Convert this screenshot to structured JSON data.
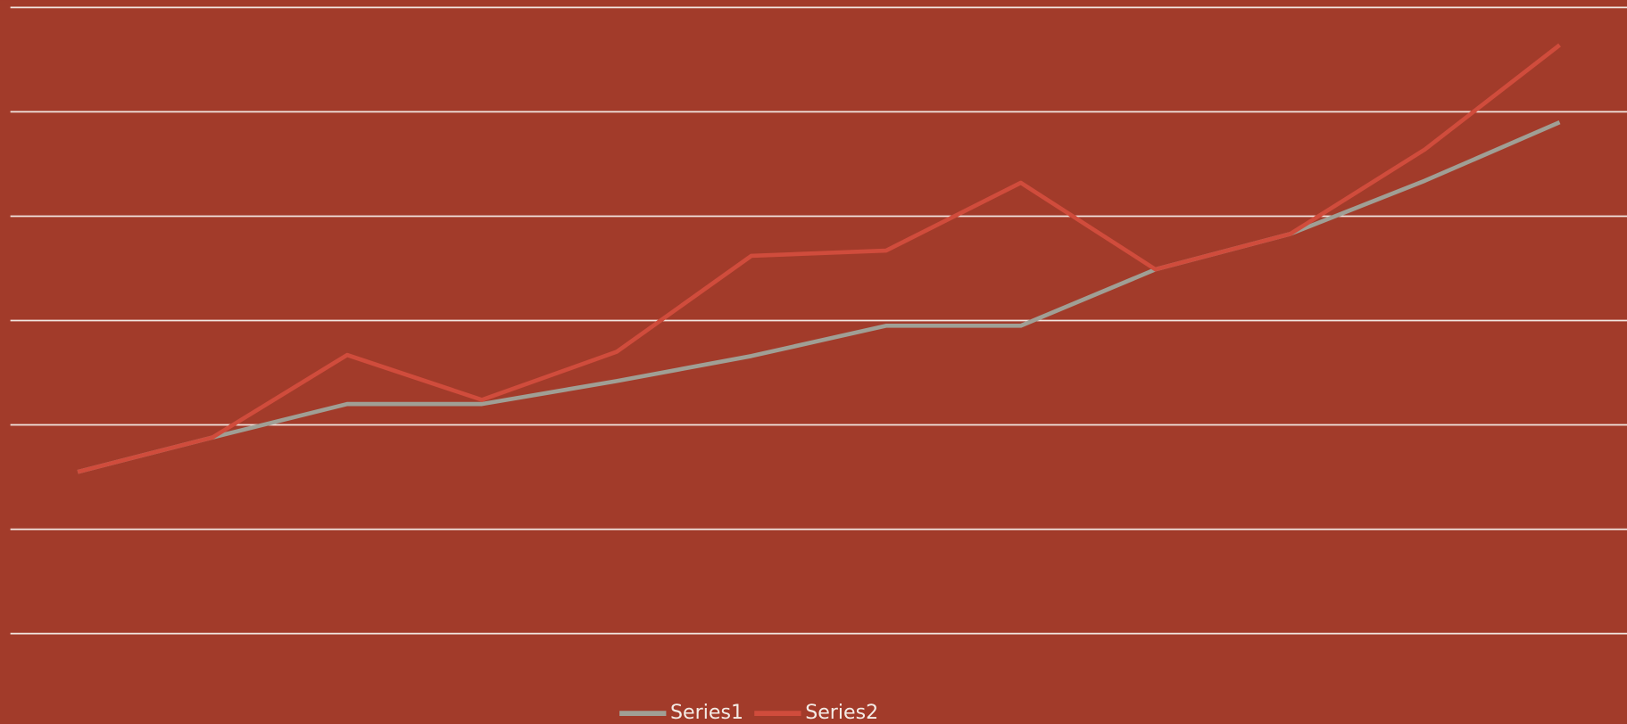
{
  "chart_data": {
    "type": "line",
    "categories": [
      null,
      null,
      null,
      null,
      null,
      null,
      null,
      null,
      null,
      null,
      null,
      null
    ],
    "series": [
      {
        "name": "Series1",
        "color": "#a09f95",
        "values": [
          1.55,
          1.88,
          2.2,
          2.2,
          2.42,
          2.66,
          2.95,
          2.95,
          3.49,
          3.83,
          4.34,
          4.9
        ]
      },
      {
        "name": "Series2",
        "color": "#d04c3c",
        "values": [
          1.55,
          1.88,
          2.67,
          2.24,
          2.7,
          3.62,
          3.67,
          4.32,
          3.49,
          3.83,
          4.64,
          5.64
        ]
      }
    ],
    "ylim": [
      0,
      6
    ],
    "yticks": [
      0,
      1,
      2,
      3,
      4,
      5,
      6
    ],
    "grid": true,
    "legend": "bottom"
  }
}
